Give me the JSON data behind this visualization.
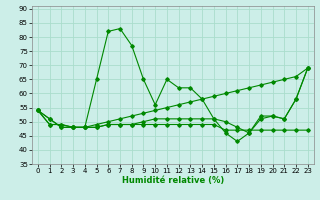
{
  "xlabel": "Humidité relative (%)",
  "background_color": "#cceee8",
  "grid_color": "#aaddcc",
  "line_color": "#008800",
  "xlim": [
    -0.5,
    23.5
  ],
  "ylim": [
    35,
    91
  ],
  "yticks": [
    35,
    40,
    45,
    50,
    55,
    60,
    65,
    70,
    75,
    80,
    85,
    90
  ],
  "xticks": [
    0,
    1,
    2,
    3,
    4,
    5,
    6,
    7,
    8,
    9,
    10,
    11,
    12,
    13,
    14,
    15,
    16,
    17,
    18,
    19,
    20,
    21,
    22,
    23
  ],
  "series": [
    [
      54,
      49,
      49,
      48,
      48,
      65,
      82,
      83,
      77,
      65,
      56,
      65,
      62,
      62,
      58,
      51,
      46,
      43,
      46,
      51,
      52,
      51,
      58,
      69
    ],
    [
      54,
      49,
      49,
      48,
      48,
      48,
      49,
      49,
      49,
      49,
      49,
      49,
      49,
      49,
      49,
      49,
      47,
      47,
      47,
      47,
      47,
      47,
      47,
      47
    ],
    [
      54,
      51,
      48,
      48,
      48,
      48,
      49,
      49,
      49,
      50,
      51,
      51,
      51,
      51,
      51,
      51,
      50,
      48,
      46,
      52,
      52,
      51,
      58,
      69
    ],
    [
      54,
      51,
      48,
      48,
      48,
      49,
      50,
      51,
      52,
      53,
      54,
      55,
      56,
      57,
      58,
      59,
      60,
      61,
      62,
      63,
      64,
      65,
      66,
      69
    ]
  ]
}
